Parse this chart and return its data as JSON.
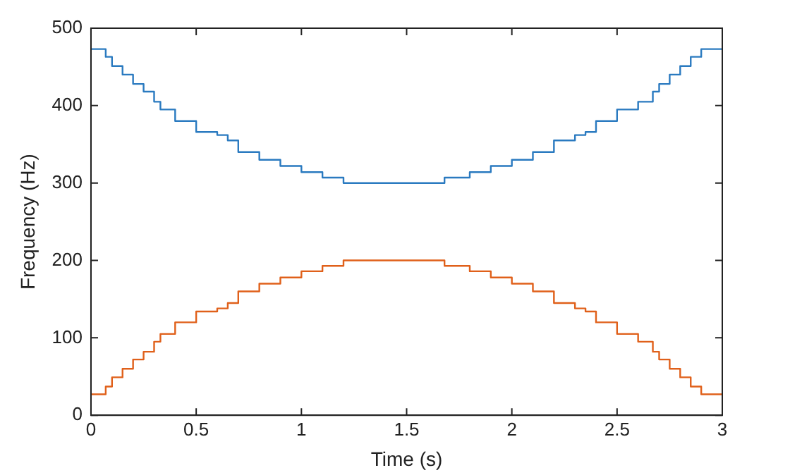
{
  "chart_data": {
    "type": "step",
    "xlabel": "Time (s)",
    "ylabel": "Frequency (Hz)",
    "x": [
      0,
      0.07,
      0.1,
      0.15,
      0.2,
      0.25,
      0.3,
      0.33,
      0.4,
      0.5,
      0.6,
      0.65,
      0.7,
      0.8,
      0.9,
      1.0,
      1.1,
      1.2,
      1.32,
      1.68,
      1.8,
      1.9,
      2.0,
      2.1,
      2.2,
      2.3,
      2.35,
      2.4,
      2.5,
      2.6,
      2.67,
      2.7,
      2.75,
      2.8,
      2.85,
      2.9,
      2.93,
      3.0
    ],
    "series": [
      {
        "color": "#2a7ac0",
        "values": [
          473,
          473,
          463,
          451,
          440,
          428,
          418,
          405,
          395,
          380,
          366,
          362,
          355,
          340,
          330,
          322,
          314,
          307,
          300,
          300,
          307,
          314,
          322,
          330,
          340,
          355,
          362,
          366,
          380,
          395,
          405,
          418,
          428,
          440,
          451,
          463,
          473,
          473
        ]
      },
      {
        "color": "#e0601a",
        "values": [
          27,
          27,
          37,
          49,
          60,
          72,
          82,
          95,
          105,
          120,
          134,
          138,
          145,
          160,
          170,
          178,
          186,
          193,
          200,
          200,
          193,
          186,
          178,
          170,
          160,
          145,
          138,
          134,
          120,
          105,
          95,
          82,
          72,
          60,
          49,
          37,
          27,
          27
        ]
      }
    ],
    "xlim": [
      0,
      3
    ],
    "xticks": [
      0,
      0.5,
      1,
      1.5,
      2,
      2.5,
      3
    ],
    "ylim": [
      0,
      500
    ],
    "yticks": [
      0,
      100,
      200,
      300,
      400,
      500
    ],
    "grid": false,
    "legend": false
  }
}
